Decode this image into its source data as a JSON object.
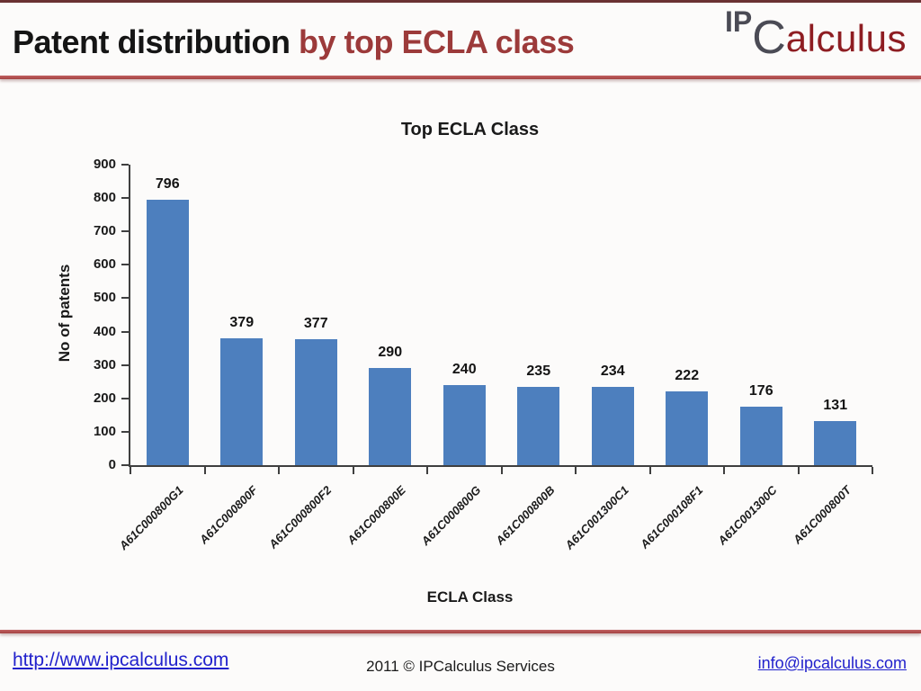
{
  "header": {
    "title_black": "Patent distribution ",
    "title_red": "by top ECLA class",
    "logo": {
      "ip": "IP",
      "c": "C",
      "rest": "alculus"
    }
  },
  "chart_data": {
    "type": "bar",
    "title": "Top ECLA Class",
    "xlabel": "ECLA Class",
    "ylabel": "No of patents",
    "categories": [
      "A61C000800G1",
      "A61C000800F",
      "A61C000800F2",
      "A61C000800E",
      "A61C000800G",
      "A61C000800B",
      "A61C001300C1",
      "A61C000108F1",
      "A61C001300C",
      "A61C000800T"
    ],
    "values": [
      796,
      379,
      377,
      290,
      240,
      235,
      234,
      222,
      176,
      131
    ],
    "ylim": [
      0,
      900
    ],
    "ytick_step": 100,
    "grid": false,
    "legend": "none",
    "data_labels": true,
    "bar_color": "#4d7fbe"
  },
  "footer": {
    "left_link": "http://www.ipcalculus.com",
    "center_text": "2011 © IPCalculus Services",
    "right_link": "info@ipcalculus.com"
  },
  "colors": {
    "accent_red_text": "#9c3a3a",
    "divider_red": "#a34242",
    "top_edge_red": "#6a3132",
    "bar_blue": "#4d7fbe",
    "link_blue": "#2121cc",
    "logo_gray": "#4b4b55",
    "logo_red": "#8e1d22",
    "axis_dark": "#3f3f3f"
  }
}
